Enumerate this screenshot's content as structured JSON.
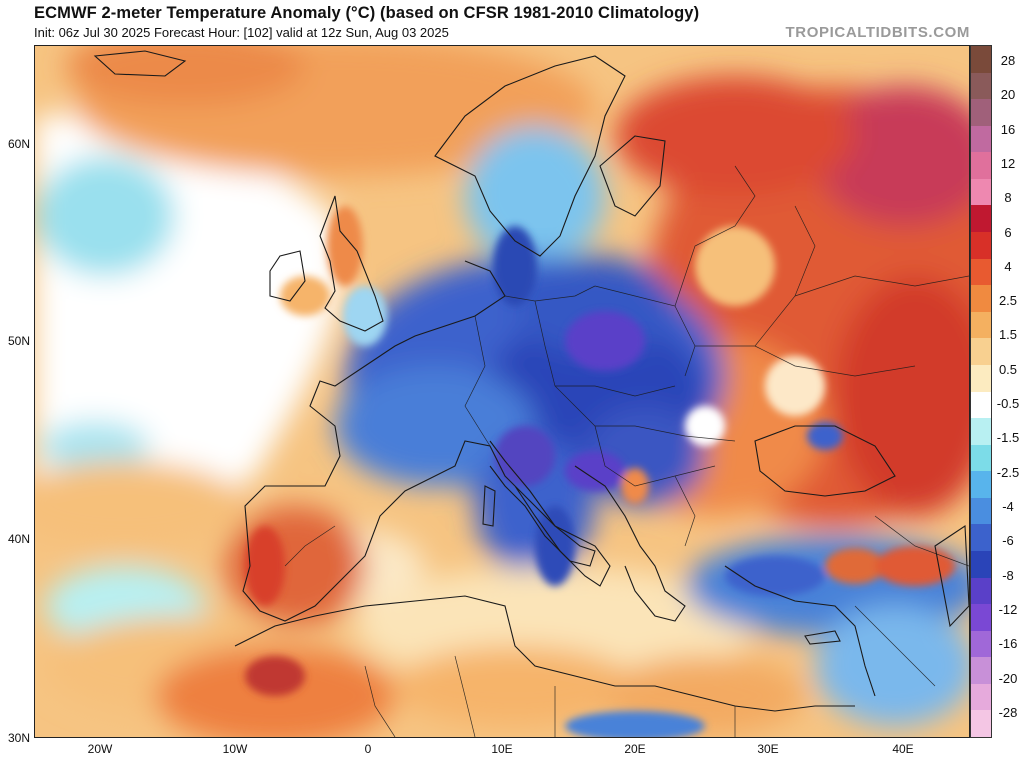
{
  "header": {
    "title": "ECMWF 2-meter Temperature Anomaly (°C) (based on CFSR 1981-2010 Climatology)",
    "subtitle": "Init: 06z Jul 30 2025   Forecast Hour: [102]   valid at 12z Sun, Aug 03 2025",
    "brand": "TROPICALTIDBITS.COM"
  },
  "axes": {
    "lat_labels": [
      "60N",
      "50N",
      "40N",
      "30N"
    ],
    "lon_labels": [
      "20W",
      "10W",
      "0",
      "10E",
      "20E",
      "30E",
      "40E"
    ]
  },
  "colorbar": {
    "labels": [
      "28",
      "20",
      "16",
      "12",
      "8",
      "6",
      "4",
      "2.5",
      "1.5",
      "0.5",
      "-0.5",
      "-1.5",
      "-2.5",
      "-4",
      "-6",
      "-8",
      "-12",
      "-16",
      "-20",
      "-28"
    ],
    "colors": [
      "#7a4a3a",
      "#8a5a5a",
      "#a0607a",
      "#c06aa0",
      "#e0709c",
      "#ee88b0",
      "#c01830",
      "#d83028",
      "#e85a30",
      "#f08a40",
      "#f4b060",
      "#f8d090",
      "#fcebc0",
      "#ffffff",
      "#b8f0f2",
      "#7cdce8",
      "#58b4ec",
      "#4a8ee0",
      "#3c62cc",
      "#2a44b8",
      "#5a40c8",
      "#7a48d4",
      "#a068d8",
      "#c890d8",
      "#e6aadc",
      "#f4c6e4"
    ]
  },
  "map_colors": {
    "ocean_warm": "#f8d8a0",
    "ocean_neutral": "#ffffff",
    "cold_strong": "#2a48b4",
    "cold_mid": "#5a8ee0",
    "cold_light": "#9ad8f0",
    "cold_purple": "#6a48c8",
    "warm_strong": "#d8402c",
    "warm_mid": "#ee7a3a",
    "warm_light": "#f6b46a",
    "warm_pale": "#fadaa0",
    "hot_pink": "#c03868",
    "border": "#1a1a1a"
  }
}
